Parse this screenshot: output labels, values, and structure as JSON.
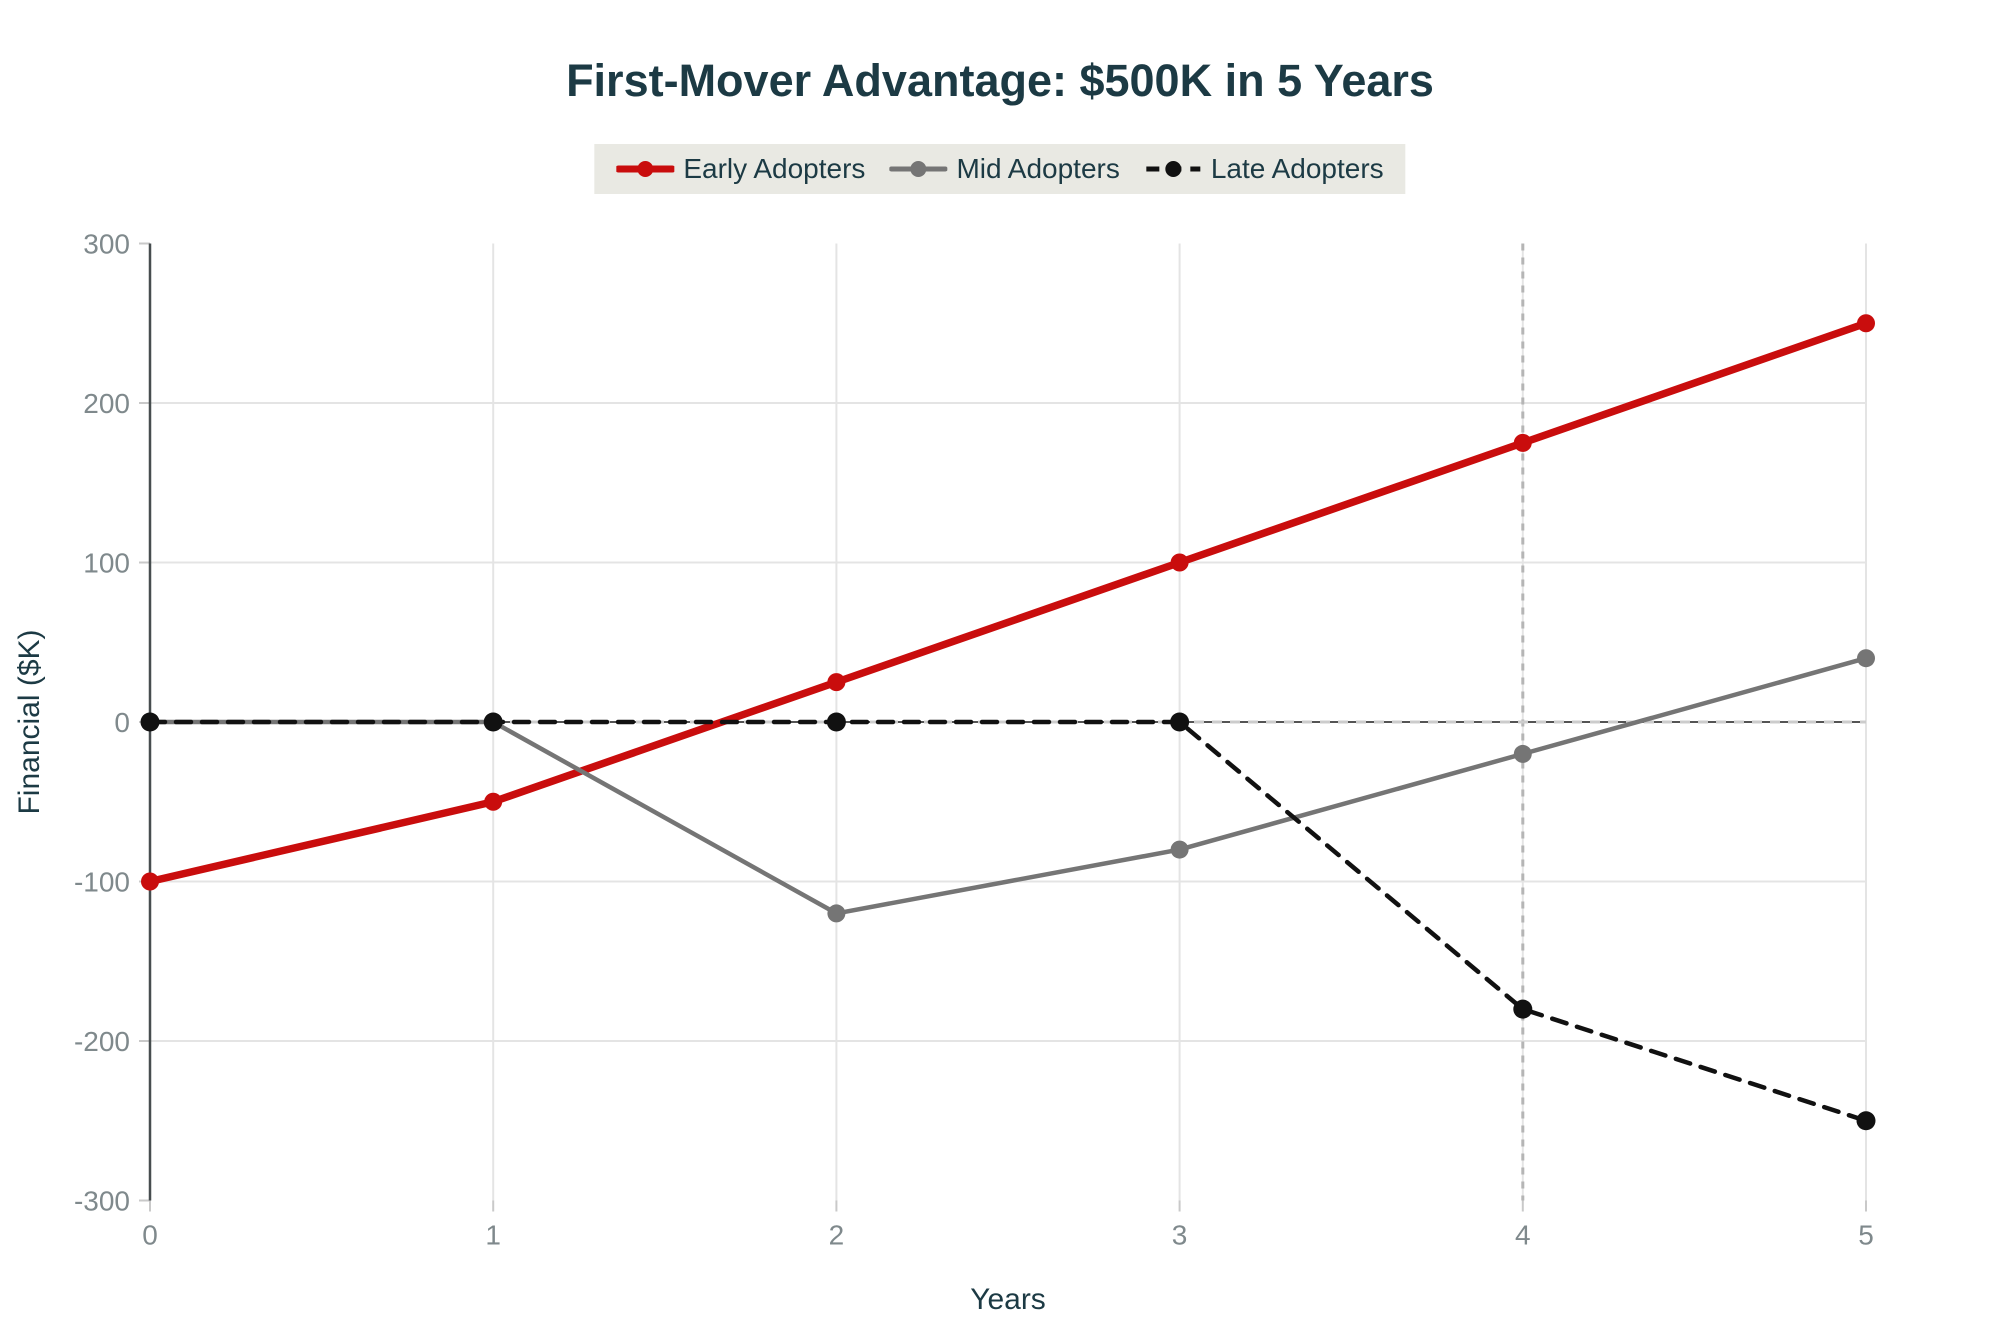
{
  "title": "First-Mover Advantage: $500K in 5 Years",
  "chart_data": {
    "type": "line",
    "title": "First-Mover Advantage: $500K in 5 Years",
    "xlabel": "Years",
    "ylabel": "Financial ($K)",
    "x": [
      0,
      1,
      2,
      3,
      4,
      5
    ],
    "xticks": [
      0,
      1,
      2,
      3,
      4,
      5
    ],
    "yticks": [
      -300,
      -200,
      -100,
      0,
      100,
      200,
      300
    ],
    "xlim": [
      0,
      5
    ],
    "ylim": [
      -300,
      300
    ],
    "grid": true,
    "legend_position": "top-center",
    "series": [
      {
        "name": "Early Adopters",
        "color": "#c90d0d",
        "style": "solid",
        "width": 7.5,
        "marker_radius": 9,
        "values": [
          -100,
          -50,
          25,
          100,
          175,
          250
        ]
      },
      {
        "name": "Mid Adopters",
        "color": "#757575",
        "style": "solid",
        "width": 4.5,
        "marker_radius": 9,
        "values": [
          0,
          0,
          -120,
          -80,
          -20,
          40
        ]
      },
      {
        "name": "Late Adopters",
        "color": "#111111",
        "style": "dashed",
        "width": 4.5,
        "marker_radius": 9.5,
        "values": [
          0,
          0,
          0,
          0,
          -180,
          -250
        ]
      }
    ],
    "annotations": {
      "zero_line": {
        "y": 0,
        "solid_color": "#3c3c3c",
        "dashed_color": "#cccccc"
      },
      "vline": {
        "x": 4,
        "color": "#b5b5b5",
        "style": "dashed"
      }
    }
  },
  "colors": {
    "background": "#ffffff",
    "title_text": "#1c3a44",
    "tick_text": "#7f898c",
    "gridline": "#e4e4e4",
    "tick_mark": "#c9c9c9",
    "axis_line": "#474d4f",
    "legend_background": "#e9e9e3"
  }
}
